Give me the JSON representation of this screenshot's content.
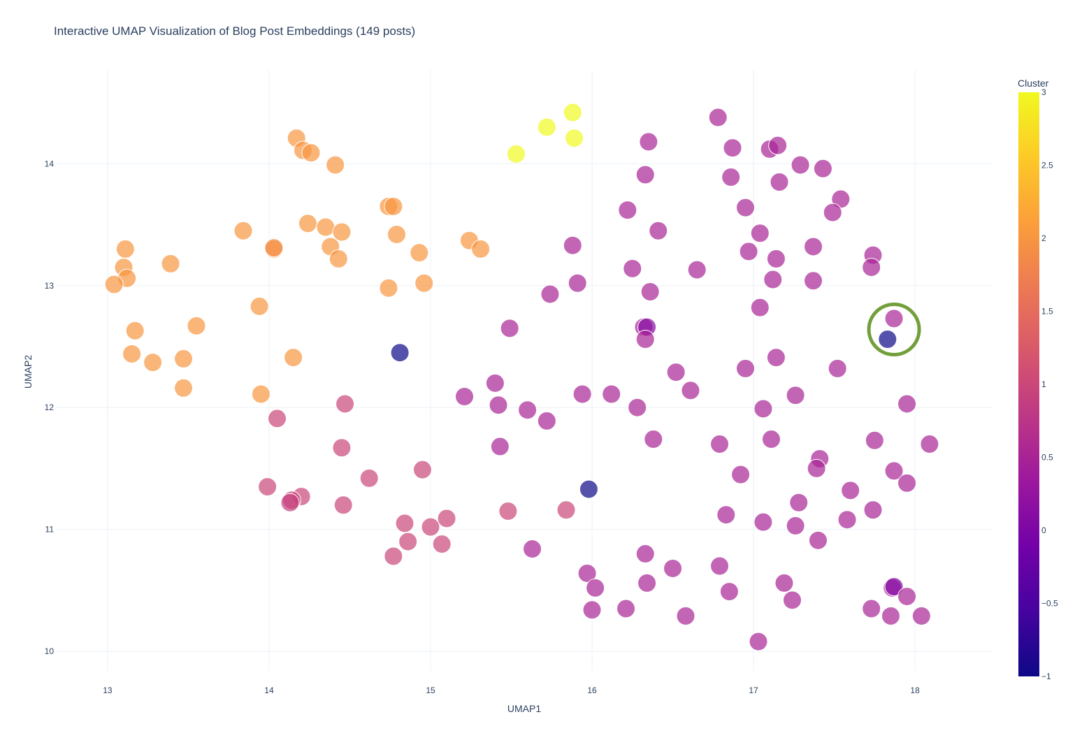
{
  "chart_data": {
    "type": "scatter",
    "title": "Interactive UMAP Visualization of Blog Post Embeddings (149 posts)",
    "xlabel": "UMAP1",
    "ylabel": "UMAP2",
    "xlim": [
      12.68,
      18.48
    ],
    "ylim": [
      9.84,
      14.77
    ],
    "xticks": [
      13,
      14,
      15,
      16,
      17,
      18
    ],
    "yticks": [
      10,
      11,
      12,
      13,
      14
    ],
    "grid": true,
    "colorbar": {
      "title": "Cluster",
      "min": -1,
      "max": 3,
      "ticks": [
        -1,
        -0.5,
        0,
        0.5,
        1,
        1.5,
        2,
        2.5,
        3
      ],
      "tick_labels": [
        "−1",
        "−0.5",
        "0",
        "0.5",
        "1",
        "1.5",
        "2",
        "2.5",
        "3"
      ],
      "colorscale": [
        "#0d0887",
        "#46039f",
        "#7201a8",
        "#9c179e",
        "#bd3786",
        "#d8576b",
        "#ed7953",
        "#fb9f3a",
        "#fdca26",
        "#f0f921"
      ]
    },
    "highlight": {
      "x": 17.87,
      "y": 12.64,
      "color": "#6a9a2f"
    },
    "points": [
      {
        "x": 15.53,
        "y": 14.08,
        "c": 3
      },
      {
        "x": 15.72,
        "y": 14.3,
        "c": 3
      },
      {
        "x": 15.88,
        "y": 14.42,
        "c": 3
      },
      {
        "x": 15.89,
        "y": 14.21,
        "c": 3
      },
      {
        "x": 14.17,
        "y": 14.21,
        "c": 2
      },
      {
        "x": 14.21,
        "y": 14.11,
        "c": 2
      },
      {
        "x": 14.26,
        "y": 14.09,
        "c": 2
      },
      {
        "x": 14.41,
        "y": 13.99,
        "c": 2
      },
      {
        "x": 14.74,
        "y": 13.65,
        "c": 2
      },
      {
        "x": 14.77,
        "y": 13.65,
        "c": 2
      },
      {
        "x": 13.84,
        "y": 13.45,
        "c": 2
      },
      {
        "x": 14.24,
        "y": 13.51,
        "c": 2
      },
      {
        "x": 14.35,
        "y": 13.48,
        "c": 2
      },
      {
        "x": 14.45,
        "y": 13.44,
        "c": 2
      },
      {
        "x": 14.79,
        "y": 13.42,
        "c": 2
      },
      {
        "x": 15.24,
        "y": 13.37,
        "c": 2
      },
      {
        "x": 15.31,
        "y": 13.3,
        "c": 2
      },
      {
        "x": 14.03,
        "y": 13.3,
        "c": 2
      },
      {
        "x": 14.03,
        "y": 13.31,
        "c": 1.9
      },
      {
        "x": 14.38,
        "y": 13.32,
        "c": 2
      },
      {
        "x": 14.43,
        "y": 13.22,
        "c": 2
      },
      {
        "x": 14.93,
        "y": 13.27,
        "c": 2
      },
      {
        "x": 13.11,
        "y": 13.3,
        "c": 2
      },
      {
        "x": 13.1,
        "y": 13.15,
        "c": 2
      },
      {
        "x": 13.12,
        "y": 13.06,
        "c": 2
      },
      {
        "x": 13.04,
        "y": 13.01,
        "c": 2
      },
      {
        "x": 13.39,
        "y": 13.18,
        "c": 2
      },
      {
        "x": 14.74,
        "y": 12.98,
        "c": 2
      },
      {
        "x": 14.96,
        "y": 13.02,
        "c": 2
      },
      {
        "x": 13.94,
        "y": 12.83,
        "c": 2
      },
      {
        "x": 13.17,
        "y": 12.63,
        "c": 2
      },
      {
        "x": 13.55,
        "y": 12.67,
        "c": 2
      },
      {
        "x": 13.15,
        "y": 12.44,
        "c": 2
      },
      {
        "x": 13.28,
        "y": 12.37,
        "c": 2
      },
      {
        "x": 13.47,
        "y": 12.4,
        "c": 2
      },
      {
        "x": 14.15,
        "y": 12.41,
        "c": 2
      },
      {
        "x": 13.47,
        "y": 12.16,
        "c": 2
      },
      {
        "x": 13.95,
        "y": 12.11,
        "c": 2
      },
      {
        "x": 14.47,
        "y": 12.03,
        "c": 1
      },
      {
        "x": 14.05,
        "y": 11.91,
        "c": 1
      },
      {
        "x": 14.45,
        "y": 11.67,
        "c": 1
      },
      {
        "x": 14.62,
        "y": 11.42,
        "c": 1
      },
      {
        "x": 14.95,
        "y": 11.49,
        "c": 1
      },
      {
        "x": 13.99,
        "y": 11.35,
        "c": 1
      },
      {
        "x": 14.2,
        "y": 11.27,
        "c": 1
      },
      {
        "x": 14.14,
        "y": 11.24,
        "c": 1
      },
      {
        "x": 14.13,
        "y": 11.22,
        "c": 0.9
      },
      {
        "x": 14.46,
        "y": 11.2,
        "c": 1
      },
      {
        "x": 15.48,
        "y": 11.15,
        "c": 1
      },
      {
        "x": 15.84,
        "y": 11.16,
        "c": 1
      },
      {
        "x": 15.1,
        "y": 11.09,
        "c": 1
      },
      {
        "x": 14.84,
        "y": 11.05,
        "c": 1
      },
      {
        "x": 15.0,
        "y": 11.02,
        "c": 1
      },
      {
        "x": 14.86,
        "y": 10.9,
        "c": 1
      },
      {
        "x": 15.07,
        "y": 10.88,
        "c": 1
      },
      {
        "x": 14.77,
        "y": 10.78,
        "c": 1
      },
      {
        "x": 14.81,
        "y": 12.45,
        "c": -1
      },
      {
        "x": 15.98,
        "y": 11.33,
        "c": -1
      },
      {
        "x": 17.83,
        "y": 12.56,
        "c": -1
      },
      {
        "x": 16.35,
        "y": 14.18,
        "c": 0.5
      },
      {
        "x": 16.78,
        "y": 14.38,
        "c": 0.5
      },
      {
        "x": 16.87,
        "y": 14.13,
        "c": 0.5
      },
      {
        "x": 17.1,
        "y": 14.12,
        "c": 0.5
      },
      {
        "x": 17.15,
        "y": 14.15,
        "c": 0.5
      },
      {
        "x": 16.33,
        "y": 13.91,
        "c": 0.5
      },
      {
        "x": 16.86,
        "y": 13.89,
        "c": 0.5
      },
      {
        "x": 17.29,
        "y": 13.99,
        "c": 0.5
      },
      {
        "x": 17.43,
        "y": 13.96,
        "c": 0.5
      },
      {
        "x": 17.16,
        "y": 13.85,
        "c": 0.5
      },
      {
        "x": 16.22,
        "y": 13.62,
        "c": 0.5
      },
      {
        "x": 16.95,
        "y": 13.64,
        "c": 0.5
      },
      {
        "x": 17.54,
        "y": 13.71,
        "c": 0.5
      },
      {
        "x": 17.49,
        "y": 13.6,
        "c": 0.5
      },
      {
        "x": 16.41,
        "y": 13.45,
        "c": 0.5
      },
      {
        "x": 17.04,
        "y": 13.43,
        "c": 0.5
      },
      {
        "x": 15.88,
        "y": 13.33,
        "c": 0.5
      },
      {
        "x": 16.97,
        "y": 13.28,
        "c": 0.5
      },
      {
        "x": 17.37,
        "y": 13.32,
        "c": 0.5
      },
      {
        "x": 17.14,
        "y": 13.22,
        "c": 0.5
      },
      {
        "x": 17.74,
        "y": 13.25,
        "c": 0.5
      },
      {
        "x": 16.25,
        "y": 13.14,
        "c": 0.5
      },
      {
        "x": 16.65,
        "y": 13.13,
        "c": 0.5
      },
      {
        "x": 17.73,
        "y": 13.15,
        "c": 0.5
      },
      {
        "x": 15.91,
        "y": 13.02,
        "c": 0.5
      },
      {
        "x": 17.12,
        "y": 13.05,
        "c": 0.5
      },
      {
        "x": 17.37,
        "y": 13.04,
        "c": 0.5
      },
      {
        "x": 15.74,
        "y": 12.93,
        "c": 0.5
      },
      {
        "x": 16.36,
        "y": 12.95,
        "c": 0.5
      },
      {
        "x": 17.04,
        "y": 12.82,
        "c": 0.5
      },
      {
        "x": 17.87,
        "y": 12.73,
        "c": 0.5
      },
      {
        "x": 15.49,
        "y": 12.65,
        "c": 0.5
      },
      {
        "x": 16.32,
        "y": 12.66,
        "c": 0.5
      },
      {
        "x": 16.34,
        "y": 12.66,
        "c": 0.1
      },
      {
        "x": 16.33,
        "y": 12.56,
        "c": 0.5
      },
      {
        "x": 17.14,
        "y": 12.41,
        "c": 0.5
      },
      {
        "x": 16.95,
        "y": 12.32,
        "c": 0.5
      },
      {
        "x": 17.52,
        "y": 12.32,
        "c": 0.5
      },
      {
        "x": 16.52,
        "y": 12.29,
        "c": 0.5
      },
      {
        "x": 15.4,
        "y": 12.2,
        "c": 0.5
      },
      {
        "x": 15.21,
        "y": 12.09,
        "c": 0.5
      },
      {
        "x": 15.94,
        "y": 12.11,
        "c": 0.5
      },
      {
        "x": 16.12,
        "y": 12.11,
        "c": 0.5
      },
      {
        "x": 16.61,
        "y": 12.14,
        "c": 0.5
      },
      {
        "x": 17.26,
        "y": 12.1,
        "c": 0.5
      },
      {
        "x": 15.42,
        "y": 12.02,
        "c": 0.5
      },
      {
        "x": 15.6,
        "y": 11.98,
        "c": 0.5
      },
      {
        "x": 16.28,
        "y": 12.0,
        "c": 0.5
      },
      {
        "x": 17.06,
        "y": 11.99,
        "c": 0.5
      },
      {
        "x": 17.95,
        "y": 12.03,
        "c": 0.5
      },
      {
        "x": 15.72,
        "y": 11.89,
        "c": 0.5
      },
      {
        "x": 16.38,
        "y": 11.74,
        "c": 0.5
      },
      {
        "x": 17.11,
        "y": 11.74,
        "c": 0.5
      },
      {
        "x": 17.75,
        "y": 11.73,
        "c": 0.5
      },
      {
        "x": 15.43,
        "y": 11.68,
        "c": 0.5
      },
      {
        "x": 16.79,
        "y": 11.7,
        "c": 0.5
      },
      {
        "x": 18.09,
        "y": 11.7,
        "c": 0.5
      },
      {
        "x": 17.41,
        "y": 11.58,
        "c": 0.5
      },
      {
        "x": 17.39,
        "y": 11.5,
        "c": 0.5
      },
      {
        "x": 17.87,
        "y": 11.48,
        "c": 0.5
      },
      {
        "x": 16.92,
        "y": 11.45,
        "c": 0.5
      },
      {
        "x": 17.95,
        "y": 11.38,
        "c": 0.5
      },
      {
        "x": 17.6,
        "y": 11.32,
        "c": 0.5
      },
      {
        "x": 17.28,
        "y": 11.22,
        "c": 0.5
      },
      {
        "x": 17.74,
        "y": 11.16,
        "c": 0.5
      },
      {
        "x": 16.83,
        "y": 11.12,
        "c": 0.5
      },
      {
        "x": 17.06,
        "y": 11.06,
        "c": 0.5
      },
      {
        "x": 17.58,
        "y": 11.08,
        "c": 0.5
      },
      {
        "x": 17.26,
        "y": 11.03,
        "c": 0.5
      },
      {
        "x": 17.4,
        "y": 10.91,
        "c": 0.5
      },
      {
        "x": 15.63,
        "y": 10.84,
        "c": 0.5
      },
      {
        "x": 16.33,
        "y": 10.8,
        "c": 0.5
      },
      {
        "x": 16.5,
        "y": 10.68,
        "c": 0.5
      },
      {
        "x": 16.79,
        "y": 10.7,
        "c": 0.5
      },
      {
        "x": 15.97,
        "y": 10.64,
        "c": 0.5
      },
      {
        "x": 16.02,
        "y": 10.52,
        "c": 0.5
      },
      {
        "x": 16.34,
        "y": 10.56,
        "c": 0.5
      },
      {
        "x": 16.85,
        "y": 10.49,
        "c": 0.5
      },
      {
        "x": 17.19,
        "y": 10.56,
        "c": 0.5
      },
      {
        "x": 17.86,
        "y": 10.52,
        "c": 0.5
      },
      {
        "x": 17.87,
        "y": 10.53,
        "c": 0.05
      },
      {
        "x": 17.95,
        "y": 10.45,
        "c": 0.5
      },
      {
        "x": 17.24,
        "y": 10.42,
        "c": 0.5
      },
      {
        "x": 16.0,
        "y": 10.34,
        "c": 0.5
      },
      {
        "x": 16.21,
        "y": 10.35,
        "c": 0.5
      },
      {
        "x": 16.58,
        "y": 10.29,
        "c": 0.5
      },
      {
        "x": 17.73,
        "y": 10.35,
        "c": 0.5
      },
      {
        "x": 17.85,
        "y": 10.29,
        "c": 0.5
      },
      {
        "x": 18.04,
        "y": 10.29,
        "c": 0.5
      },
      {
        "x": 17.03,
        "y": 10.08,
        "c": 0.5
      }
    ]
  }
}
